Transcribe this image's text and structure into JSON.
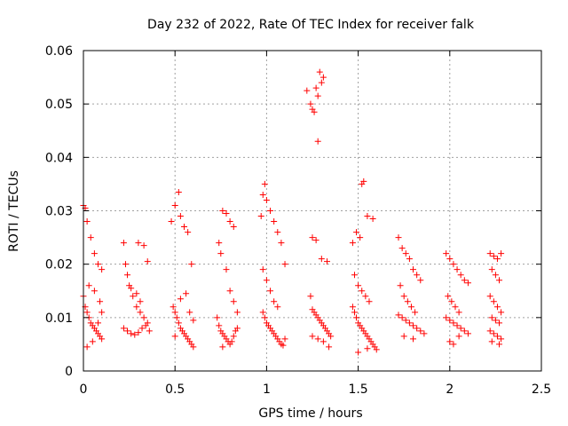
{
  "chart_data": {
    "type": "scatter",
    "title": "Day 232 of 2022, Rate Of TEC Index for receiver falk",
    "xlabel": "GPS time / hours",
    "ylabel": "ROTI / TECUs",
    "xlim": [
      0,
      2.5
    ],
    "ylim": [
      0,
      0.06
    ],
    "x_ticks": [
      0,
      0.5,
      1,
      1.5,
      2,
      2.5
    ],
    "x_tick_labels": [
      "0",
      "0.5",
      "1",
      "1.5",
      "2",
      "2.5"
    ],
    "y_ticks": [
      0,
      0.01,
      0.02,
      0.03,
      0.04,
      0.05,
      0.06
    ],
    "y_tick_labels": [
      "0",
      "0.01",
      "0.02",
      "0.03",
      "0.04",
      "0.05",
      "0.06"
    ],
    "grid": true,
    "marker": "+",
    "color": "#ff0000",
    "series": [
      {
        "name": "ROTI",
        "points": [
          [
            0.0,
            0.031
          ],
          [
            0.01,
            0.0305
          ],
          [
            0.02,
            0.028
          ],
          [
            0.04,
            0.025
          ],
          [
            0.06,
            0.022
          ],
          [
            0.08,
            0.02
          ],
          [
            0.1,
            0.019
          ],
          [
            0.0,
            0.014
          ],
          [
            0.01,
            0.012
          ],
          [
            0.02,
            0.011
          ],
          [
            0.03,
            0.01
          ],
          [
            0.04,
            0.009
          ],
          [
            0.05,
            0.0085
          ],
          [
            0.06,
            0.008
          ],
          [
            0.07,
            0.0075
          ],
          [
            0.08,
            0.007
          ],
          [
            0.09,
            0.0065
          ],
          [
            0.1,
            0.006
          ],
          [
            0.02,
            0.0045
          ],
          [
            0.05,
            0.0055
          ],
          [
            0.08,
            0.009
          ],
          [
            0.03,
            0.016
          ],
          [
            0.06,
            0.015
          ],
          [
            0.09,
            0.013
          ],
          [
            0.1,
            0.011
          ],
          [
            0.22,
            0.024
          ],
          [
            0.23,
            0.02
          ],
          [
            0.24,
            0.018
          ],
          [
            0.25,
            0.016
          ],
          [
            0.27,
            0.014
          ],
          [
            0.29,
            0.012
          ],
          [
            0.31,
            0.011
          ],
          [
            0.33,
            0.01
          ],
          [
            0.35,
            0.009
          ],
          [
            0.22,
            0.008
          ],
          [
            0.24,
            0.0075
          ],
          [
            0.26,
            0.007
          ],
          [
            0.28,
            0.0068
          ],
          [
            0.3,
            0.0072
          ],
          [
            0.32,
            0.008
          ],
          [
            0.34,
            0.0085
          ],
          [
            0.36,
            0.0075
          ],
          [
            0.3,
            0.024
          ],
          [
            0.33,
            0.0235
          ],
          [
            0.35,
            0.0205
          ],
          [
            0.26,
            0.0155
          ],
          [
            0.29,
            0.0145
          ],
          [
            0.31,
            0.013
          ],
          [
            0.48,
            0.028
          ],
          [
            0.5,
            0.031
          ],
          [
            0.52,
            0.0335
          ],
          [
            0.53,
            0.029
          ],
          [
            0.55,
            0.027
          ],
          [
            0.57,
            0.026
          ],
          [
            0.59,
            0.02
          ],
          [
            0.49,
            0.012
          ],
          [
            0.5,
            0.011
          ],
          [
            0.51,
            0.01
          ],
          [
            0.52,
            0.009
          ],
          [
            0.53,
            0.008
          ],
          [
            0.54,
            0.0075
          ],
          [
            0.55,
            0.007
          ],
          [
            0.56,
            0.0065
          ],
          [
            0.57,
            0.006
          ],
          [
            0.58,
            0.0055
          ],
          [
            0.59,
            0.005
          ],
          [
            0.6,
            0.0045
          ],
          [
            0.5,
            0.0065
          ],
          [
            0.53,
            0.0135
          ],
          [
            0.56,
            0.0145
          ],
          [
            0.58,
            0.011
          ],
          [
            0.6,
            0.0095
          ],
          [
            0.73,
            0.01
          ],
          [
            0.74,
            0.0085
          ],
          [
            0.75,
            0.0075
          ],
          [
            0.76,
            0.007
          ],
          [
            0.77,
            0.0065
          ],
          [
            0.78,
            0.006
          ],
          [
            0.79,
            0.0055
          ],
          [
            0.8,
            0.005
          ],
          [
            0.81,
            0.0055
          ],
          [
            0.82,
            0.0065
          ],
          [
            0.83,
            0.0075
          ],
          [
            0.84,
            0.008
          ],
          [
            0.76,
            0.03
          ],
          [
            0.78,
            0.0295
          ],
          [
            0.8,
            0.028
          ],
          [
            0.82,
            0.027
          ],
          [
            0.74,
            0.024
          ],
          [
            0.75,
            0.022
          ],
          [
            0.78,
            0.019
          ],
          [
            0.8,
            0.015
          ],
          [
            0.82,
            0.013
          ],
          [
            0.84,
            0.011
          ],
          [
            0.76,
            0.0045
          ],
          [
            0.97,
            0.029
          ],
          [
            0.98,
            0.033
          ],
          [
            0.99,
            0.035
          ],
          [
            1.0,
            0.032
          ],
          [
            1.02,
            0.03
          ],
          [
            1.04,
            0.028
          ],
          [
            1.06,
            0.026
          ],
          [
            1.08,
            0.024
          ],
          [
            1.1,
            0.02
          ],
          [
            0.98,
            0.019
          ],
          [
            1.0,
            0.017
          ],
          [
            1.02,
            0.015
          ],
          [
            1.04,
            0.013
          ],
          [
            1.06,
            0.012
          ],
          [
            0.98,
            0.011
          ],
          [
            0.99,
            0.01
          ],
          [
            1.0,
            0.009
          ],
          [
            1.01,
            0.0085
          ],
          [
            1.02,
            0.008
          ],
          [
            1.03,
            0.0075
          ],
          [
            1.04,
            0.007
          ],
          [
            1.05,
            0.0065
          ],
          [
            1.06,
            0.006
          ],
          [
            1.07,
            0.0055
          ],
          [
            1.08,
            0.005
          ],
          [
            1.09,
            0.0048
          ],
          [
            1.1,
            0.006
          ],
          [
            1.22,
            0.0525
          ],
          [
            1.24,
            0.05
          ],
          [
            1.25,
            0.049
          ],
          [
            1.26,
            0.0485
          ],
          [
            1.27,
            0.053
          ],
          [
            1.28,
            0.0515
          ],
          [
            1.29,
            0.056
          ],
          [
            1.3,
            0.054
          ],
          [
            1.31,
            0.055
          ],
          [
            1.28,
            0.043
          ],
          [
            1.25,
            0.025
          ],
          [
            1.27,
            0.0245
          ],
          [
            1.3,
            0.021
          ],
          [
            1.33,
            0.0205
          ],
          [
            1.24,
            0.014
          ],
          [
            1.25,
            0.0115
          ],
          [
            1.26,
            0.011
          ],
          [
            1.27,
            0.0105
          ],
          [
            1.28,
            0.01
          ],
          [
            1.29,
            0.0095
          ],
          [
            1.3,
            0.009
          ],
          [
            1.31,
            0.0085
          ],
          [
            1.32,
            0.008
          ],
          [
            1.33,
            0.0075
          ],
          [
            1.34,
            0.007
          ],
          [
            1.35,
            0.0065
          ],
          [
            1.25,
            0.0065
          ],
          [
            1.28,
            0.006
          ],
          [
            1.31,
            0.0055
          ],
          [
            1.34,
            0.0045
          ],
          [
            1.47,
            0.024
          ],
          [
            1.49,
            0.026
          ],
          [
            1.51,
            0.025
          ],
          [
            1.52,
            0.035
          ],
          [
            1.53,
            0.0355
          ],
          [
            1.55,
            0.029
          ],
          [
            1.58,
            0.0285
          ],
          [
            1.48,
            0.018
          ],
          [
            1.5,
            0.016
          ],
          [
            1.52,
            0.015
          ],
          [
            1.54,
            0.014
          ],
          [
            1.56,
            0.013
          ],
          [
            1.47,
            0.012
          ],
          [
            1.48,
            0.011
          ],
          [
            1.49,
            0.01
          ],
          [
            1.5,
            0.009
          ],
          [
            1.51,
            0.0085
          ],
          [
            1.52,
            0.008
          ],
          [
            1.53,
            0.0075
          ],
          [
            1.54,
            0.007
          ],
          [
            1.55,
            0.0065
          ],
          [
            1.56,
            0.006
          ],
          [
            1.57,
            0.0055
          ],
          [
            1.58,
            0.005
          ],
          [
            1.59,
            0.0045
          ],
          [
            1.6,
            0.004
          ],
          [
            1.5,
            0.0035
          ],
          [
            1.55,
            0.0042
          ],
          [
            1.72,
            0.025
          ],
          [
            1.74,
            0.023
          ],
          [
            1.76,
            0.022
          ],
          [
            1.78,
            0.021
          ],
          [
            1.8,
            0.019
          ],
          [
            1.82,
            0.018
          ],
          [
            1.84,
            0.017
          ],
          [
            1.73,
            0.016
          ],
          [
            1.75,
            0.014
          ],
          [
            1.77,
            0.013
          ],
          [
            1.79,
            0.012
          ],
          [
            1.81,
            0.011
          ],
          [
            1.72,
            0.0105
          ],
          [
            1.74,
            0.01
          ],
          [
            1.76,
            0.0095
          ],
          [
            1.78,
            0.009
          ],
          [
            1.8,
            0.0085
          ],
          [
            1.82,
            0.008
          ],
          [
            1.84,
            0.0075
          ],
          [
            1.86,
            0.007
          ],
          [
            1.75,
            0.0065
          ],
          [
            1.8,
            0.006
          ],
          [
            1.98,
            0.022
          ],
          [
            2.0,
            0.021
          ],
          [
            2.02,
            0.02
          ],
          [
            2.04,
            0.019
          ],
          [
            2.06,
            0.018
          ],
          [
            2.08,
            0.017
          ],
          [
            2.1,
            0.0165
          ],
          [
            1.99,
            0.014
          ],
          [
            2.01,
            0.013
          ],
          [
            2.03,
            0.012
          ],
          [
            2.05,
            0.011
          ],
          [
            1.98,
            0.01
          ],
          [
            2.0,
            0.0095
          ],
          [
            2.02,
            0.009
          ],
          [
            2.04,
            0.0085
          ],
          [
            2.06,
            0.008
          ],
          [
            2.08,
            0.0075
          ],
          [
            2.1,
            0.007
          ],
          [
            2.0,
            0.0055
          ],
          [
            2.02,
            0.005
          ],
          [
            2.05,
            0.0065
          ],
          [
            2.22,
            0.022
          ],
          [
            2.24,
            0.0215
          ],
          [
            2.26,
            0.021
          ],
          [
            2.28,
            0.022
          ],
          [
            2.23,
            0.019
          ],
          [
            2.25,
            0.018
          ],
          [
            2.27,
            0.017
          ],
          [
            2.22,
            0.014
          ],
          [
            2.24,
            0.013
          ],
          [
            2.26,
            0.012
          ],
          [
            2.28,
            0.011
          ],
          [
            2.23,
            0.01
          ],
          [
            2.25,
            0.0095
          ],
          [
            2.27,
            0.009
          ],
          [
            2.22,
            0.0075
          ],
          [
            2.24,
            0.007
          ],
          [
            2.26,
            0.0065
          ],
          [
            2.28,
            0.006
          ],
          [
            2.23,
            0.0055
          ],
          [
            2.27,
            0.005
          ]
        ]
      }
    ]
  }
}
